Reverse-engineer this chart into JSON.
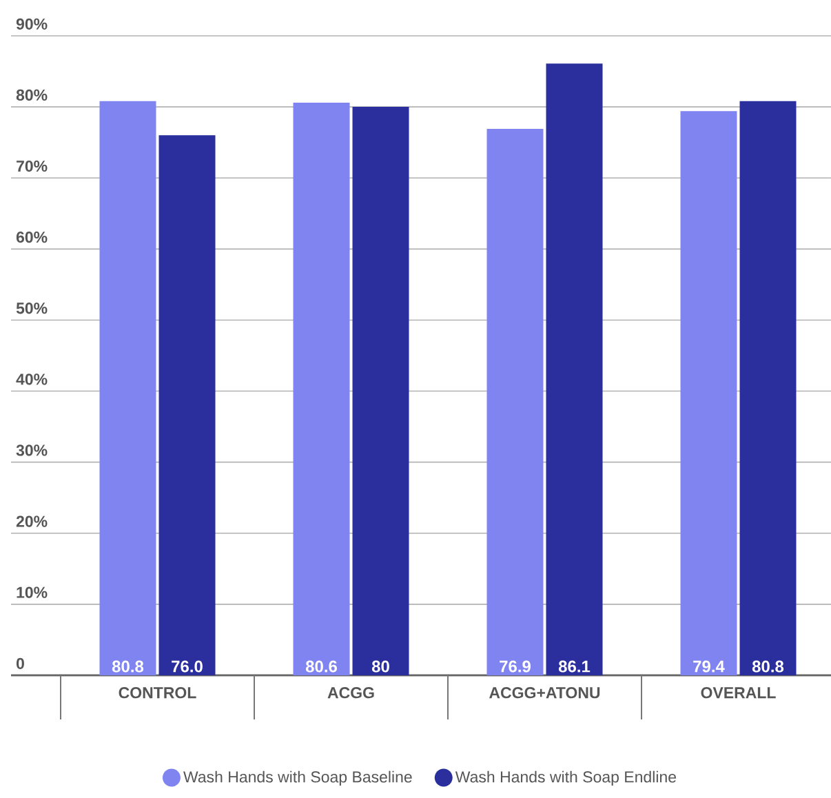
{
  "chart_data": {
    "type": "bar",
    "categories": [
      "CONTROL",
      "ACGG",
      "ACGG+ATONU",
      "OVERALL"
    ],
    "series": [
      {
        "name": "Wash Hands with Soap Baseline",
        "color": "#8084f0",
        "values": [
          80.8,
          80.6,
          76.9,
          79.4
        ],
        "value_labels": [
          "80.8",
          "80.6",
          "76.9",
          "79.4"
        ]
      },
      {
        "name": "Wash Hands with Soap Endline",
        "color": "#2b2f9e",
        "values": [
          76.0,
          80,
          86.1,
          80.8
        ],
        "value_labels": [
          "76.0",
          "80",
          "86.1",
          "80.8"
        ]
      }
    ],
    "ylim": [
      0,
      90
    ],
    "yticks": [
      {
        "value": 0,
        "label": "0"
      },
      {
        "value": 10,
        "label": "10%"
      },
      {
        "value": 20,
        "label": "20%"
      },
      {
        "value": 30,
        "label": "30%"
      },
      {
        "value": 40,
        "label": "40%"
      },
      {
        "value": 50,
        "label": "50%"
      },
      {
        "value": 60,
        "label": "60%"
      },
      {
        "value": 70,
        "label": "70%"
      },
      {
        "value": 80,
        "label": "80%"
      },
      {
        "value": 90,
        "label": "90%"
      }
    ],
    "grid": "y",
    "legend": "bottom"
  }
}
